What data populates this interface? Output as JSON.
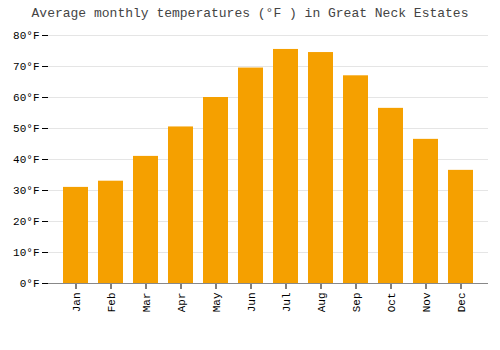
{
  "chart_data": {
    "type": "bar",
    "title": "Average monthly temperatures (°F ) in Great Neck Estates",
    "categories": [
      "Jan",
      "Feb",
      "Mar",
      "Apr",
      "May",
      "Jun",
      "Jul",
      "Aug",
      "Sep",
      "Oct",
      "Nov",
      "Dec"
    ],
    "values": [
      31,
      33,
      41,
      50.5,
      60,
      69.5,
      75.5,
      74.5,
      67,
      56.5,
      46.5,
      36.5
    ],
    "color": "#F5A000",
    "ylim": [
      0,
      80
    ],
    "yticks": [
      {
        "value": 0,
        "label": "0°F"
      },
      {
        "value": 10,
        "label": "10°F"
      },
      {
        "value": 20,
        "label": "20°F"
      },
      {
        "value": 30,
        "label": "30°F"
      },
      {
        "value": 40,
        "label": "40°F"
      },
      {
        "value": 50,
        "label": "50°F"
      },
      {
        "value": 60,
        "label": "60°F"
      },
      {
        "value": 70,
        "label": "70°F"
      },
      {
        "value": 80,
        "label": "80°F"
      }
    ],
    "grid": true
  }
}
